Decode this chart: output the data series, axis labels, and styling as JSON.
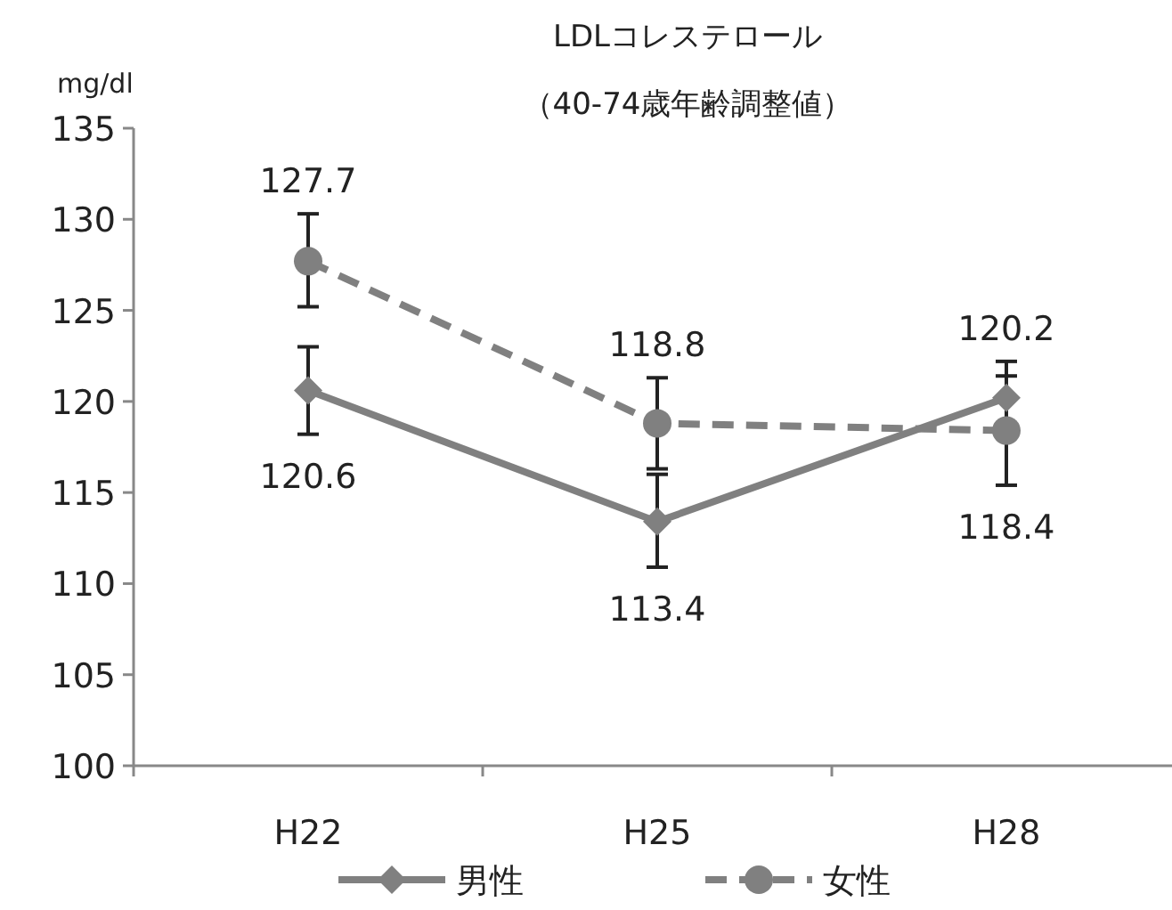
{
  "chart_data": {
    "type": "line",
    "title": "LDLコレステロール",
    "subtitle": "（40-74歳年齢調整値）",
    "ylabel": "mg/dl",
    "categories": [
      "H22",
      "H25",
      "H28"
    ],
    "series": [
      {
        "name": "男性",
        "color": "#808080",
        "values": [
          120.6,
          113.4,
          120.2
        ],
        "errors": [
          [
            118.2,
            123.0
          ],
          [
            110.9,
            116.0
          ],
          [
            120.2,
            122.2
          ]
        ],
        "marker": "diamond",
        "line_style": "solid"
      },
      {
        "name": "女性",
        "color": "#808080",
        "values": [
          127.7,
          118.8,
          118.4
        ],
        "errors": [
          [
            125.2,
            130.3
          ],
          [
            116.3,
            121.3
          ],
          [
            115.4,
            121.4
          ]
        ],
        "marker": "circle",
        "line_style": "dashed"
      }
    ],
    "ylim": [
      100,
      135
    ],
    "yticks": [
      100,
      105,
      110,
      115,
      120,
      125,
      130,
      135
    ],
    "data_labels": true,
    "grid": false,
    "legend": "bottom"
  }
}
